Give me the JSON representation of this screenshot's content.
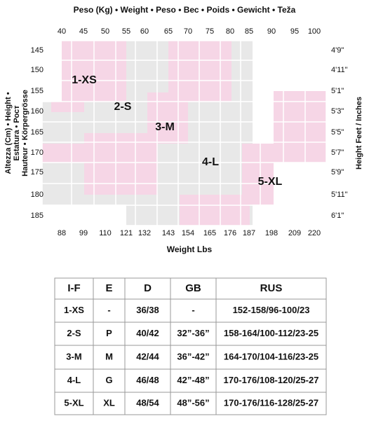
{
  "chart": {
    "title": "Peso (Kg) • Weight • Peso • Вес • Poids • Gewicht • Teža",
    "kg_labels": [
      "40",
      "45",
      "50",
      "55",
      "60",
      "65",
      "70",
      "75",
      "80",
      "85",
      "90",
      "95",
      "100"
    ],
    "lbs_labels": [
      "88",
      "99",
      "110",
      "121",
      "132",
      "143",
      "154",
      "165",
      "176",
      "187",
      "198",
      "209",
      "220"
    ],
    "cm_labels": [
      "145",
      "150",
      "155",
      "160",
      "165",
      "170",
      "175",
      "180",
      "185"
    ],
    "feet_labels": [
      "4'9\"",
      "4'11\"",
      "5'1\"",
      "5'3\"",
      "5'5\"",
      "5'7\"",
      "5'9\"",
      "5'11\"",
      "6'1\""
    ],
    "x_label": "Weight Lbs",
    "y_label_left": [
      "Altezza (Cm) • Height •",
      "Estatura • Рост",
      "Hauteur • Körpergrösse"
    ],
    "y_label_right": "Height Feet / Inches",
    "zones": [
      "1-XS",
      "2-S",
      "3-M",
      "4-L",
      "5-XL"
    ]
  },
  "table": {
    "header": [
      "I-F",
      "E",
      "D",
      "GB",
      "RUS"
    ],
    "rows": [
      [
        "1-XS",
        "-",
        "36/38",
        "-",
        "152-158/96-100/23"
      ],
      [
        "2-S",
        "P",
        "40/42",
        "32”-36”",
        "158-164/100-112/23-25"
      ],
      [
        "3-M",
        "M",
        "42/44",
        "36”-42”",
        "164-170/104-116/23-25"
      ],
      [
        "4-L",
        "G",
        "46/48",
        "42”-48”",
        "170-176/108-120/25-27"
      ],
      [
        "5-XL",
        "XL",
        "48/54",
        "48”-56”",
        "170-176/116-128/25-27"
      ]
    ]
  }
}
